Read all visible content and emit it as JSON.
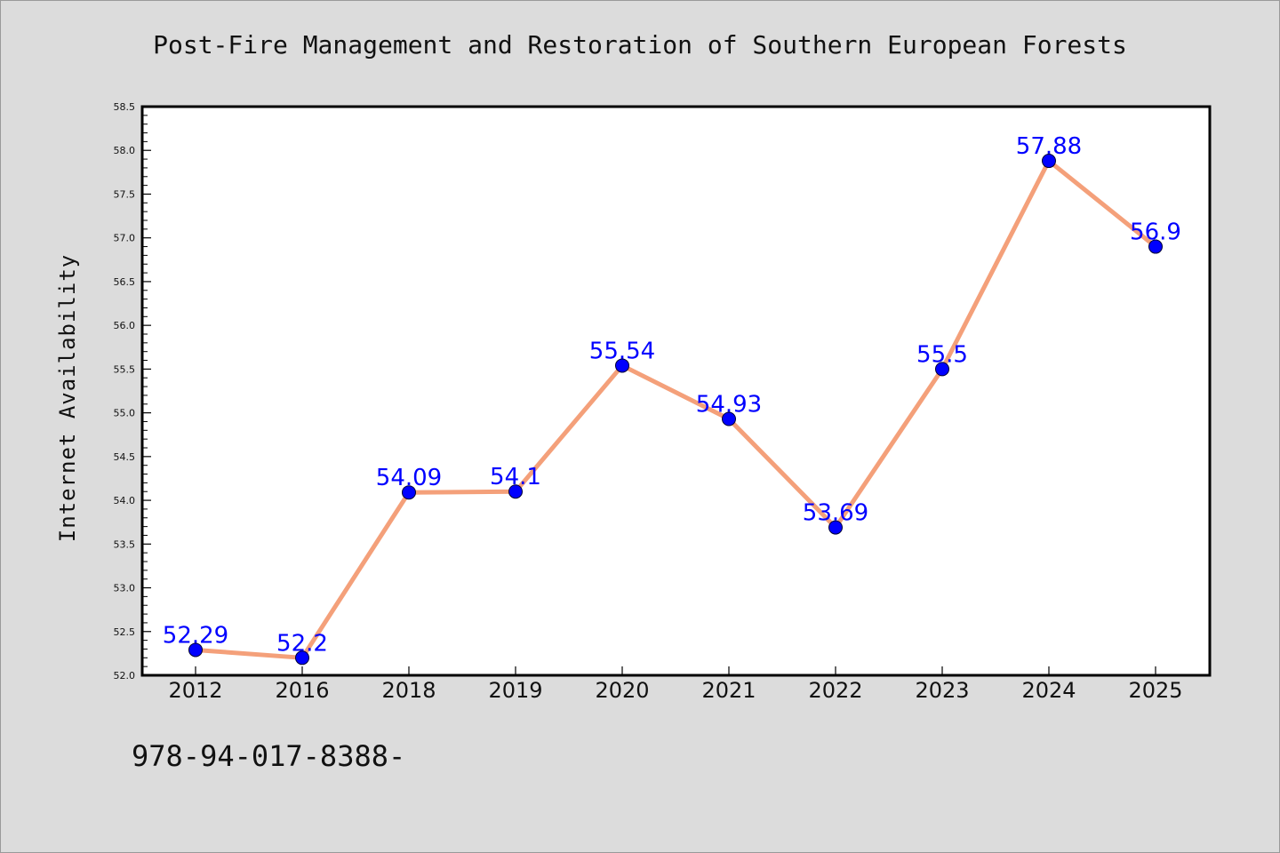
{
  "page": {
    "title": "Post-Fire Management and Restoration of Southern European Forests",
    "footer": "978-94-017-8388-"
  },
  "colors": {
    "background": "#dcdcdc",
    "plot_background": "#ffffff",
    "line": "#f4a07a",
    "marker": "#0000ff",
    "data_label": "#0000ff",
    "axis": "#000000"
  },
  "chart_data": {
    "type": "line",
    "title": "Post-Fire Management and Restoration of Southern European Forests",
    "xlabel": "",
    "ylabel": "Internet Availability",
    "categories": [
      "2012",
      "2016",
      "2018",
      "2019",
      "2020",
      "2021",
      "2022",
      "2023",
      "2024",
      "2025"
    ],
    "series": [
      {
        "values": [
          52.29,
          52.2,
          54.09,
          54.1,
          55.54,
          54.93,
          53.69,
          55.5,
          57.88,
          56.9
        ],
        "labels": [
          "52.29",
          "52.2",
          "54.09",
          "54.1",
          "55.54",
          "54.93",
          "53.69",
          "55.5",
          "57.88",
          "56.9"
        ]
      }
    ],
    "ylim": [
      52.0,
      58.5
    ],
    "yticks": [
      "52.0",
      "52.5",
      "53.0",
      "53.5",
      "54.0",
      "54.5",
      "55.0",
      "55.5",
      "56.0",
      "56.5",
      "57.0",
      "57.5",
      "58.0",
      "58.5"
    ],
    "grid": false,
    "legend": "none",
    "markers": "circle"
  }
}
